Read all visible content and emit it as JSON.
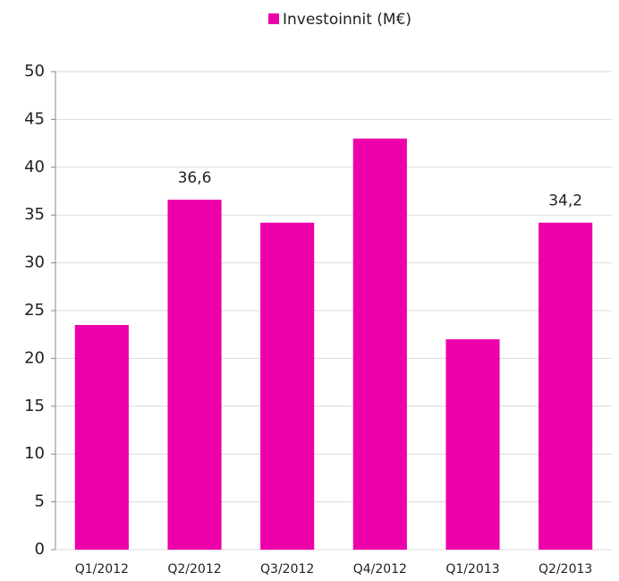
{
  "chart_data": {
    "type": "bar",
    "series": [
      {
        "name": "Investoinnit (M€)",
        "color": "#ec00aa",
        "values": [
          23.5,
          36.6,
          34.2,
          43,
          22,
          34.2
        ],
        "value_labels": [
          null,
          "36,6",
          null,
          null,
          null,
          "34,2"
        ]
      }
    ],
    "categories": [
      "Q1/2012",
      "Q2/2012",
      "Q3/2012",
      "Q4/2012",
      "Q1/2013",
      "Q2/2013"
    ],
    "ylim": [
      0,
      50
    ],
    "yticks": [
      0,
      5,
      10,
      15,
      20,
      25,
      30,
      35,
      40,
      45,
      50
    ],
    "grid": true,
    "legend": "top"
  }
}
